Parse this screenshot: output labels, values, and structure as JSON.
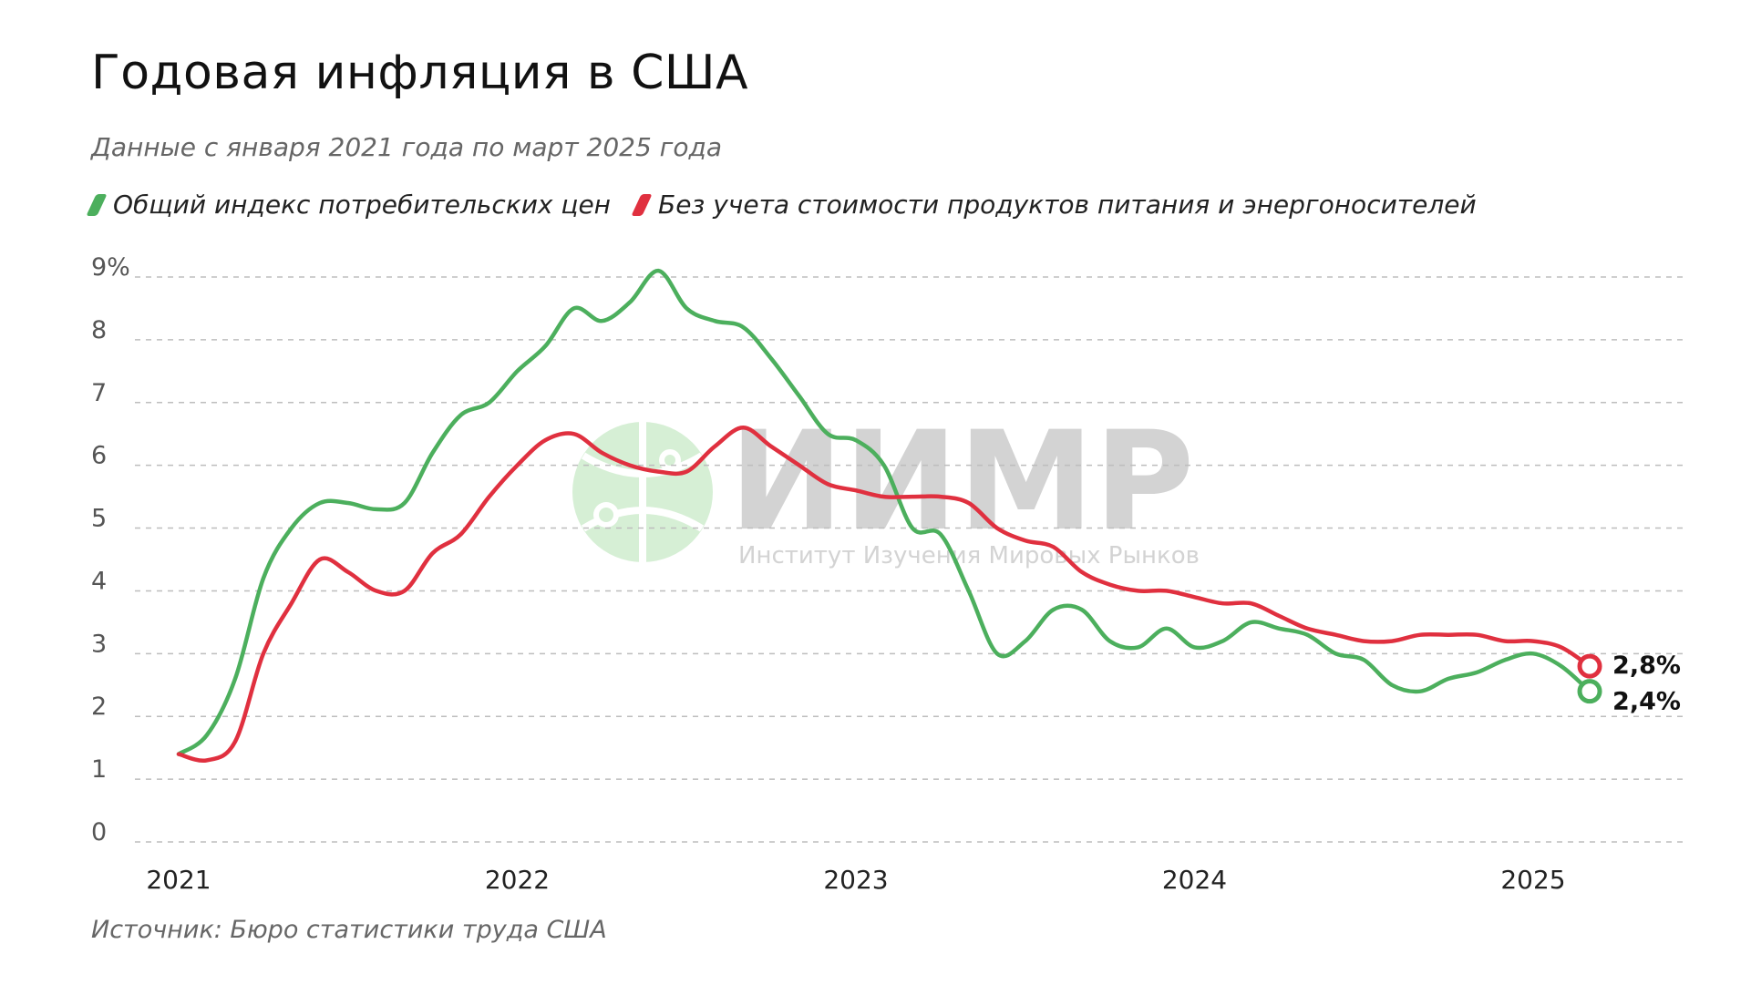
{
  "header": {
    "title": "Годовая инфляция в США",
    "subtitle": "Данные с января 2021 года по март 2025 года"
  },
  "watermark": {
    "logo_text": "ИИМР",
    "logo_subtext": "Институт Изучения Мировых Рынков"
  },
  "source": "Источник: Бюро статистики труда США",
  "colors": {
    "green": "#4caf5d",
    "red": "#e0303f",
    "grid": "#bbbbbb",
    "watermark_green": "#d6efd5",
    "watermark_gray": "#d3d3d3"
  },
  "chart_data": {
    "type": "line",
    "title": "Годовая инфляция в США",
    "subtitle": "Данные с января 2021 года по март 2025 года",
    "xlim": [
      2021.0,
      2025.6
    ],
    "ylim": [
      0,
      9
    ],
    "x_ticks": [
      {
        "value": 2021,
        "label": "2021"
      },
      {
        "value": 2022,
        "label": "2022"
      },
      {
        "value": 2023,
        "label": "2023"
      },
      {
        "value": 2024,
        "label": "2024"
      },
      {
        "value": 2025,
        "label": "2025"
      }
    ],
    "y_ticks": [
      {
        "value": 0,
        "label": "0"
      },
      {
        "value": 1,
        "label": "1"
      },
      {
        "value": 2,
        "label": "2"
      },
      {
        "value": 3,
        "label": "3"
      },
      {
        "value": 4,
        "label": "4"
      },
      {
        "value": 5,
        "label": "5"
      },
      {
        "value": 6,
        "label": "6"
      },
      {
        "value": 7,
        "label": "7"
      },
      {
        "value": 8,
        "label": "8"
      },
      {
        "value": 9,
        "label": "9%"
      }
    ],
    "grid": true,
    "legend_position": "top-left",
    "series": [
      {
        "name": "Общий индекс потребительских цен",
        "color": "#4caf5d",
        "end_label": "2,4%",
        "points": [
          [
            2021.0,
            1.4
          ],
          [
            2021.083,
            1.7
          ],
          [
            2021.167,
            2.6
          ],
          [
            2021.25,
            4.2
          ],
          [
            2021.333,
            5.0
          ],
          [
            2021.417,
            5.4
          ],
          [
            2021.5,
            5.4
          ],
          [
            2021.583,
            5.3
          ],
          [
            2021.667,
            5.4
          ],
          [
            2021.75,
            6.2
          ],
          [
            2021.833,
            6.8
          ],
          [
            2021.917,
            7.0
          ],
          [
            2022.0,
            7.5
          ],
          [
            2022.083,
            7.9
          ],
          [
            2022.167,
            8.5
          ],
          [
            2022.25,
            8.3
          ],
          [
            2022.333,
            8.6
          ],
          [
            2022.417,
            9.1
          ],
          [
            2022.5,
            8.5
          ],
          [
            2022.583,
            8.3
          ],
          [
            2022.667,
            8.2
          ],
          [
            2022.75,
            7.7
          ],
          [
            2022.833,
            7.1
          ],
          [
            2022.917,
            6.5
          ],
          [
            2023.0,
            6.4
          ],
          [
            2023.083,
            6.0
          ],
          [
            2023.167,
            5.0
          ],
          [
            2023.25,
            4.9
          ],
          [
            2023.333,
            4.0
          ],
          [
            2023.417,
            3.0
          ],
          [
            2023.5,
            3.2
          ],
          [
            2023.583,
            3.7
          ],
          [
            2023.667,
            3.7
          ],
          [
            2023.75,
            3.2
          ],
          [
            2023.833,
            3.1
          ],
          [
            2023.917,
            3.4
          ],
          [
            2024.0,
            3.1
          ],
          [
            2024.083,
            3.2
          ],
          [
            2024.167,
            3.5
          ],
          [
            2024.25,
            3.4
          ],
          [
            2024.333,
            3.3
          ],
          [
            2024.417,
            3.0
          ],
          [
            2024.5,
            2.9
          ],
          [
            2024.583,
            2.5
          ],
          [
            2024.667,
            2.4
          ],
          [
            2024.75,
            2.6
          ],
          [
            2024.833,
            2.7
          ],
          [
            2024.917,
            2.9
          ],
          [
            2025.0,
            3.0
          ],
          [
            2025.083,
            2.8
          ],
          [
            2025.167,
            2.4
          ]
        ]
      },
      {
        "name": "Без учета стоимости продуктов питания и энергоносителей",
        "color": "#e0303f",
        "end_label": "2,8%",
        "points": [
          [
            2021.0,
            1.4
          ],
          [
            2021.083,
            1.3
          ],
          [
            2021.167,
            1.6
          ],
          [
            2021.25,
            3.0
          ],
          [
            2021.333,
            3.8
          ],
          [
            2021.417,
            4.5
          ],
          [
            2021.5,
            4.3
          ],
          [
            2021.583,
            4.0
          ],
          [
            2021.667,
            4.0
          ],
          [
            2021.75,
            4.6
          ],
          [
            2021.833,
            4.9
          ],
          [
            2021.917,
            5.5
          ],
          [
            2022.0,
            6.0
          ],
          [
            2022.083,
            6.4
          ],
          [
            2022.167,
            6.5
          ],
          [
            2022.25,
            6.2
          ],
          [
            2022.333,
            6.0
          ],
          [
            2022.417,
            5.9
          ],
          [
            2022.5,
            5.9
          ],
          [
            2022.583,
            6.3
          ],
          [
            2022.667,
            6.6
          ],
          [
            2022.75,
            6.3
          ],
          [
            2022.833,
            6.0
          ],
          [
            2022.917,
            5.7
          ],
          [
            2023.0,
            5.6
          ],
          [
            2023.083,
            5.5
          ],
          [
            2023.167,
            5.5
          ],
          [
            2023.25,
            5.5
          ],
          [
            2023.333,
            5.4
          ],
          [
            2023.417,
            5.0
          ],
          [
            2023.5,
            4.8
          ],
          [
            2023.583,
            4.7
          ],
          [
            2023.667,
            4.3
          ],
          [
            2023.75,
            4.1
          ],
          [
            2023.833,
            4.0
          ],
          [
            2023.917,
            4.0
          ],
          [
            2024.0,
            3.9
          ],
          [
            2024.083,
            3.8
          ],
          [
            2024.167,
            3.8
          ],
          [
            2024.25,
            3.6
          ],
          [
            2024.333,
            3.4
          ],
          [
            2024.417,
            3.3
          ],
          [
            2024.5,
            3.2
          ],
          [
            2024.583,
            3.2
          ],
          [
            2024.667,
            3.3
          ],
          [
            2024.75,
            3.3
          ],
          [
            2024.833,
            3.3
          ],
          [
            2024.917,
            3.2
          ],
          [
            2025.0,
            3.2
          ],
          [
            2025.083,
            3.1
          ],
          [
            2025.167,
            2.8
          ]
        ]
      }
    ]
  }
}
